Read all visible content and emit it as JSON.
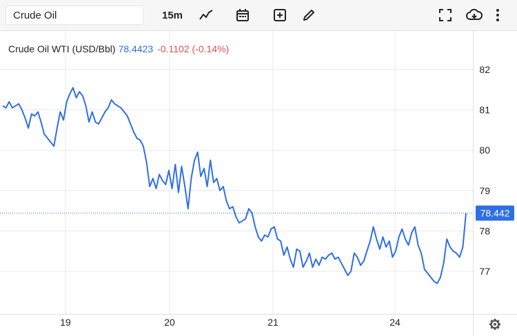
{
  "toolbar": {
    "symbol_value": "Crude Oil",
    "interval_label": "15m",
    "icons": [
      "line-chart-icon",
      "calendar-icon",
      "add-indicator-icon",
      "draw-pencil-icon",
      "fullscreen-icon",
      "download-cloud-icon",
      "more-vertical-icon"
    ]
  },
  "legend": {
    "name": "Crude Oil WTI (USD/Bbl)",
    "last": "78.4423",
    "change": "-0.1102 (-0.14%)"
  },
  "price_tag": "78.442",
  "colors": {
    "line": "#2f6ee6",
    "up": "#2f6ee6",
    "down": "#e05050",
    "grid": "#e8e8e8"
  },
  "chart_data": {
    "type": "line",
    "title": "Crude Oil WTI (USD/Bbl)",
    "xlabel": "",
    "ylabel": "",
    "x_tick_labels": [
      "19",
      "20",
      "21",
      "24"
    ],
    "y_tick_labels": [
      "77",
      "78",
      "79",
      "80",
      "81",
      "82"
    ],
    "ylim": [
      76.0,
      82.4
    ],
    "last_value": 78.4423,
    "grid": true,
    "series": [
      {
        "values": [
          81.1,
          81.05,
          81.2,
          81.05,
          81.1,
          81.15,
          81.0,
          80.8,
          80.55,
          80.9,
          80.85,
          80.95,
          80.7,
          80.4,
          80.3,
          80.2,
          80.1,
          80.55,
          80.95,
          80.75,
          81.2,
          81.4,
          81.55,
          81.3,
          81.45,
          81.35,
          81.1,
          80.7,
          80.95,
          80.7,
          80.65,
          80.8,
          80.95,
          81.05,
          81.25,
          81.15,
          81.1,
          81.05,
          80.95,
          80.85,
          80.65,
          80.45,
          80.3,
          80.25,
          80.1,
          79.7,
          79.1,
          79.3,
          79.05,
          79.4,
          79.25,
          79.15,
          79.5,
          79.05,
          79.65,
          78.95,
          79.6,
          79.1,
          78.55,
          79.3,
          79.75,
          79.95,
          79.35,
          79.55,
          79.1,
          79.75,
          79.2,
          79.3,
          79.0,
          79.1,
          78.75,
          78.55,
          78.6,
          78.35,
          78.2,
          78.25,
          78.3,
          78.55,
          78.45,
          78.1,
          77.85,
          77.75,
          77.9,
          77.85,
          78.05,
          78.1,
          77.8,
          77.75,
          77.4,
          77.6,
          77.3,
          77.1,
          77.55,
          77.5,
          77.1,
          77.25,
          77.45,
          77.1,
          77.3,
          77.15,
          77.35,
          77.3,
          77.4,
          77.45,
          77.3,
          77.35,
          77.2,
          77.05,
          76.9,
          77.0,
          77.45,
          77.35,
          77.15,
          77.25,
          77.5,
          77.75,
          78.1,
          77.8,
          77.55,
          77.85,
          77.6,
          77.75,
          77.35,
          77.5,
          77.85,
          78.05,
          77.8,
          77.65,
          77.95,
          78.1,
          77.65,
          77.45,
          77.05,
          76.95,
          76.85,
          76.75,
          76.7,
          76.85,
          77.2,
          77.8,
          77.6,
          77.5,
          77.45,
          77.35,
          77.6,
          78.44
        ]
      }
    ]
  }
}
